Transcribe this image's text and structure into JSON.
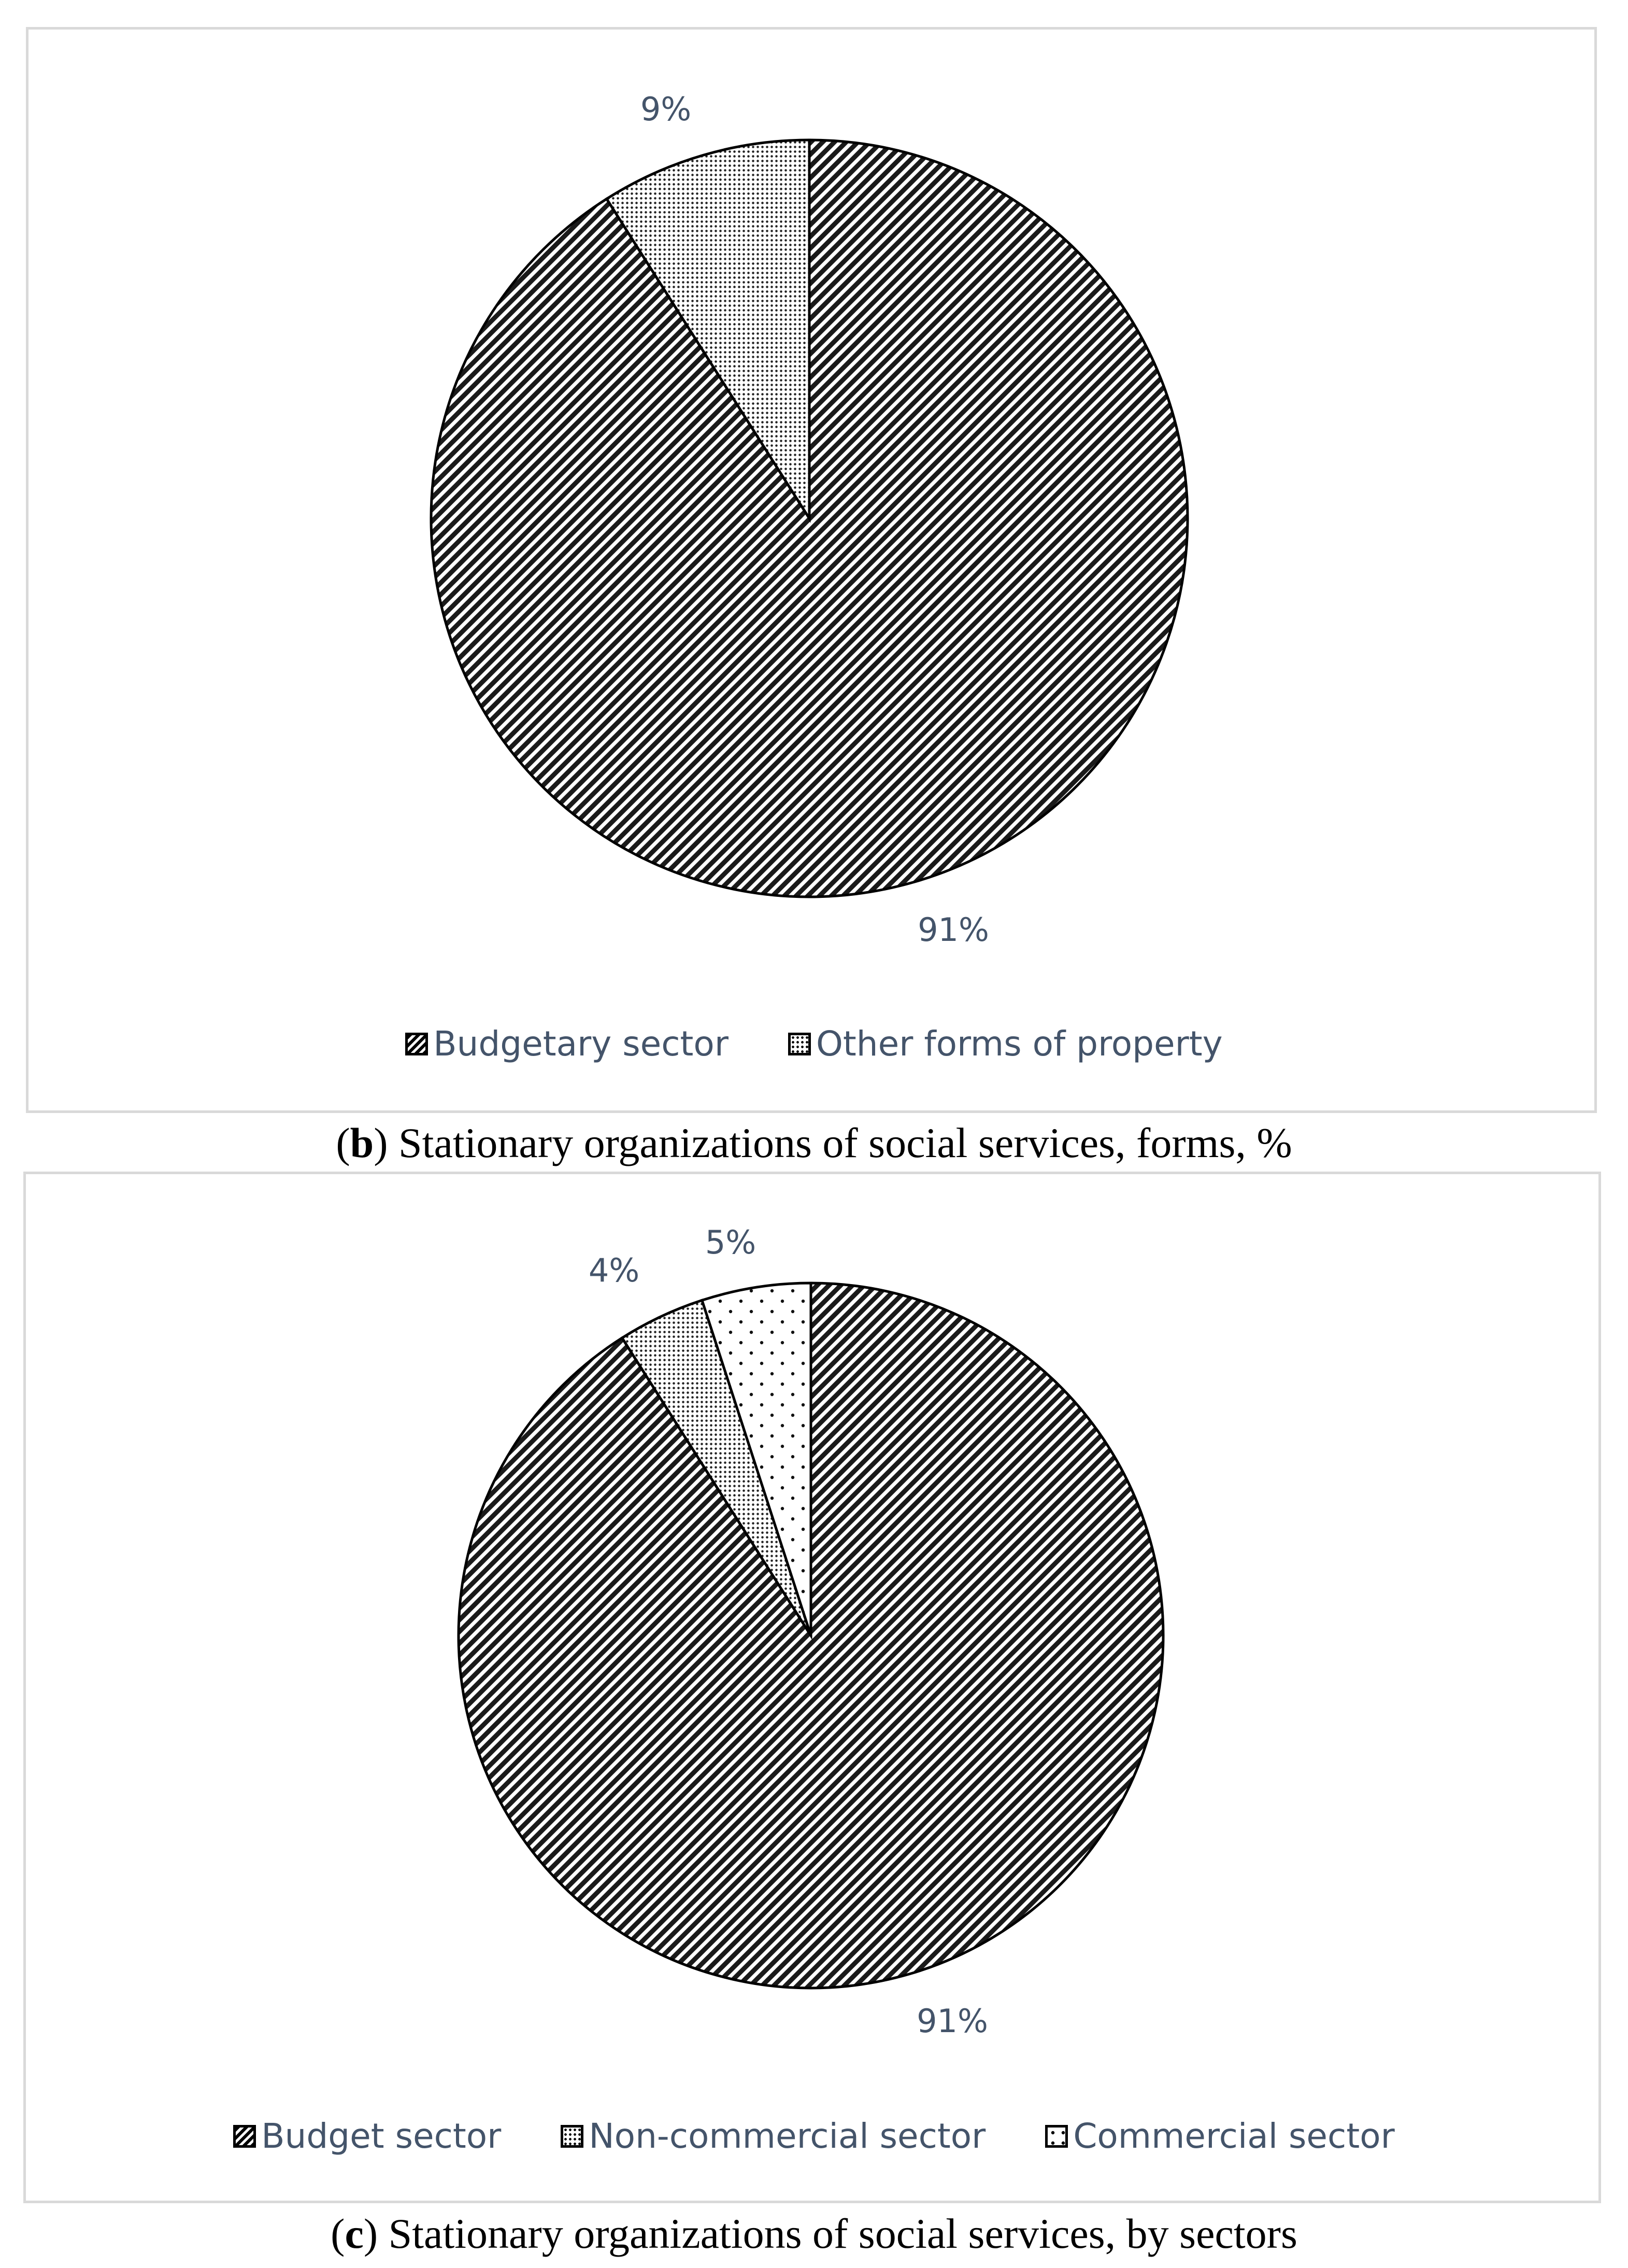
{
  "chart_data": [
    {
      "type": "pie",
      "slices": [
        {
          "label": "Budgetary sector",
          "value": 91,
          "value_label": "91%",
          "pattern": "hatch"
        },
        {
          "label": "Other forms of property",
          "value": 9,
          "value_label": "9%",
          "pattern": "dots"
        }
      ],
      "legend_position": "bottom",
      "caption": {
        "open": "(",
        "letter": "b",
        "rest": ") Stationary organizations of social services, forms, %"
      }
    },
    {
      "type": "pie",
      "slices": [
        {
          "label": "Budget sector",
          "value": 91,
          "value_label": "91%",
          "pattern": "hatch"
        },
        {
          "label": "Non-commercial sector",
          "value": 4,
          "value_label": "4%",
          "pattern": "dots"
        },
        {
          "label": "Commercial sector",
          "value": 5,
          "value_label": "5%",
          "pattern": "sparse"
        }
      ],
      "legend_position": "bottom",
      "caption": {
        "open": "(",
        "letter": "c",
        "rest": ") Stationary organizations of social services, by sectors"
      }
    }
  ],
  "colors": {
    "label_text": "#44546a",
    "border": "#d9d9d9",
    "stroke": "#000000"
  }
}
